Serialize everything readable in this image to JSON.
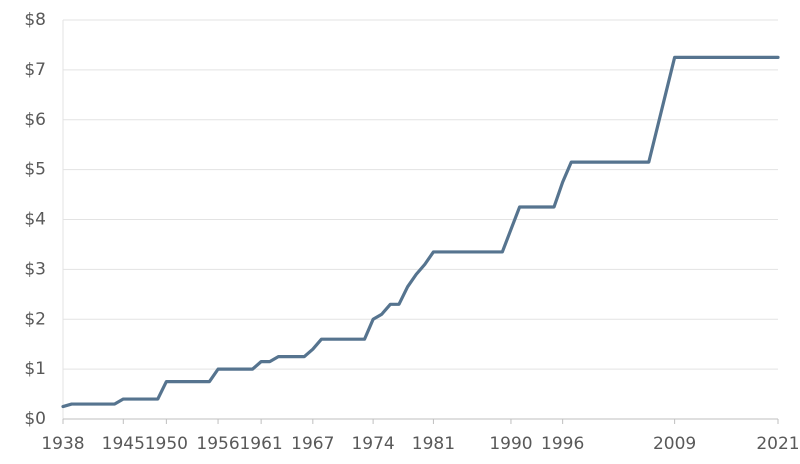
{
  "chart_data": {
    "type": "line",
    "x": [
      1938,
      1939,
      1940,
      1941,
      1942,
      1943,
      1944,
      1945,
      1946,
      1947,
      1948,
      1949,
      1950,
      1951,
      1952,
      1953,
      1954,
      1955,
      1956,
      1957,
      1958,
      1959,
      1960,
      1961,
      1962,
      1963,
      1964,
      1965,
      1966,
      1967,
      1968,
      1969,
      1970,
      1971,
      1972,
      1973,
      1974,
      1975,
      1976,
      1977,
      1978,
      1979,
      1980,
      1981,
      1982,
      1983,
      1984,
      1985,
      1986,
      1987,
      1988,
      1989,
      1990,
      1991,
      1992,
      1993,
      1994,
      1995,
      1996,
      1997,
      1998,
      1999,
      2000,
      2001,
      2002,
      2003,
      2004,
      2005,
      2006,
      2007,
      2008,
      2009,
      2010,
      2011,
      2012,
      2013,
      2014,
      2015,
      2016,
      2017,
      2018,
      2019,
      2020,
      2021
    ],
    "values": [
      0.25,
      0.3,
      0.3,
      0.3,
      0.3,
      0.3,
      0.3,
      0.4,
      0.4,
      0.4,
      0.4,
      0.4,
      0.75,
      0.75,
      0.75,
      0.75,
      0.75,
      0.75,
      1.0,
      1.0,
      1.0,
      1.0,
      1.0,
      1.15,
      1.15,
      1.25,
      1.25,
      1.25,
      1.25,
      1.4,
      1.6,
      1.6,
      1.6,
      1.6,
      1.6,
      1.6,
      2.0,
      2.1,
      2.3,
      2.3,
      2.65,
      2.9,
      3.1,
      3.35,
      3.35,
      3.35,
      3.35,
      3.35,
      3.35,
      3.35,
      3.35,
      3.35,
      3.8,
      4.25,
      4.25,
      4.25,
      4.25,
      4.25,
      4.75,
      5.15,
      5.15,
      5.15,
      5.15,
      5.15,
      5.15,
      5.15,
      5.15,
      5.15,
      5.15,
      5.85,
      6.55,
      7.25,
      7.25,
      7.25,
      7.25,
      7.25,
      7.25,
      7.25,
      7.25,
      7.25,
      7.25,
      7.25,
      7.25,
      7.25
    ],
    "color": "#56748f",
    "xlim": [
      1938,
      2021
    ],
    "xticks": [
      1938,
      1945,
      1950,
      1956,
      1961,
      1967,
      1974,
      1981,
      1990,
      1996,
      2009,
      2021
    ],
    "ylim": [
      0,
      8
    ],
    "yticks": [
      {
        "value": 0,
        "label": "$0"
      },
      {
        "value": 1,
        "label": "$1"
      },
      {
        "value": 2,
        "label": "$2"
      },
      {
        "value": 3,
        "label": "$3"
      },
      {
        "value": 4,
        "label": "$4"
      },
      {
        "value": 5,
        "label": "$5"
      },
      {
        "value": 6,
        "label": "$6"
      },
      {
        "value": 7,
        "label": "$7"
      },
      {
        "value": 8,
        "label": "$8"
      }
    ],
    "grid": true
  }
}
